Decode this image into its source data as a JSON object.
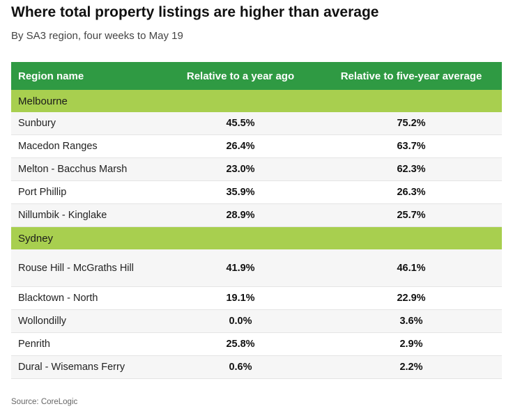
{
  "title": "Where total property listings are higher than average",
  "subtitle": "By SA3 region, four weeks to May 19",
  "header": {
    "col1": "Region name",
    "col2": "Relative to a year ago",
    "col3": "Relative to five-year average"
  },
  "colors": {
    "header_bg": "#2f9a43",
    "group_bg": "#a8cf4f"
  },
  "groups": [
    {
      "name": "Melbourne",
      "rows": [
        {
          "region": "Sunbury",
          "year": "45.5%",
          "five": "75.2%"
        },
        {
          "region": "Macedon Ranges",
          "year": "26.4%",
          "five": "63.7%"
        },
        {
          "region": "Melton - Bacchus Marsh",
          "year": "23.0%",
          "five": "62.3%"
        },
        {
          "region": "Port Phillip",
          "year": "35.9%",
          "five": "26.3%"
        },
        {
          "region": "Nillumbik - Kinglake",
          "year": "28.9%",
          "five": "25.7%"
        }
      ]
    },
    {
      "name": "Sydney",
      "rows": [
        {
          "region": "Rouse Hill - McGraths Hill",
          "year": "41.9%",
          "five": "46.1%"
        },
        {
          "region": "Blacktown - North",
          "year": "19.1%",
          "five": "22.9%"
        },
        {
          "region": "Wollondilly",
          "year": "0.0%",
          "five": "3.6%"
        },
        {
          "region": "Penrith",
          "year": "25.8%",
          "five": "2.9%"
        },
        {
          "region": "Dural - Wisemans Ferry",
          "year": "0.6%",
          "five": "2.2%"
        }
      ]
    }
  ],
  "source": "Source: CoreLogic"
}
